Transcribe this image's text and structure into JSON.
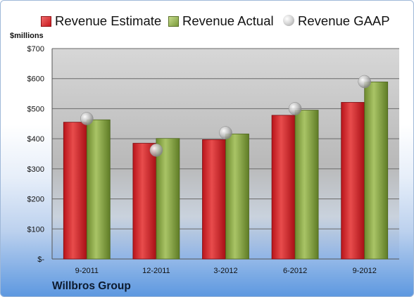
{
  "chart_data": {
    "type": "bar",
    "title": "",
    "ylabel": "$millions",
    "xlabel": "",
    "footer": "Willbros Group",
    "categories": [
      "9-2011",
      "12-2011",
      "3-2012",
      "6-2012",
      "9-2012"
    ],
    "yticks": [
      "$-",
      "$100",
      "$200",
      "$300",
      "$400",
      "$500",
      "$600",
      "$700"
    ],
    "ylim": [
      0,
      700
    ],
    "grid": true,
    "legend_position": "top",
    "series": [
      {
        "name": "Revenue Estimate",
        "kind": "bar",
        "color": "#d42a2a",
        "values": [
          455,
          385,
          397,
          478,
          521
        ]
      },
      {
        "name": "Revenue Actual",
        "kind": "bar",
        "color": "#94b14f",
        "values": [
          463,
          401,
          416,
          495,
          589
        ]
      },
      {
        "name": "Revenue GAAP",
        "kind": "marker",
        "color": "#b4b4b4",
        "values": [
          467,
          362,
          420,
          500,
          590
        ]
      }
    ]
  }
}
